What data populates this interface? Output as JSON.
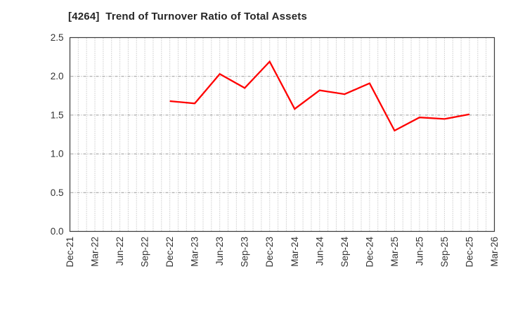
{
  "chart_data": {
    "type": "line",
    "title": "[4264]  Trend of Turnover Ratio of Total Assets",
    "xlabel": "",
    "ylabel": "",
    "ylim": [
      0.0,
      2.5
    ],
    "y_tick_step": 0.5,
    "y_tick_labels": [
      "0.0",
      "0.5",
      "1.0",
      "1.5",
      "2.0",
      "2.5"
    ],
    "x_tick_labels": [
      "Dec-21",
      "Mar-22",
      "Jun-22",
      "Sep-22",
      "Dec-22",
      "Mar-23",
      "Jun-23",
      "Sep-23",
      "Dec-23",
      "Mar-24",
      "Jun-24",
      "Sep-24",
      "Dec-24",
      "Mar-25",
      "Jun-25",
      "Sep-25",
      "Dec-25",
      "Mar-26"
    ],
    "x_tick_rotation_deg": 90,
    "grid": {
      "vertical": "monthly, dotted",
      "horizontal": "every 0.5, dash-dot"
    },
    "legend_position": "none",
    "series": [
      {
        "name": "Turnover Ratio of Total Assets",
        "color": "#ff0000",
        "points": [
          {
            "x": "Dec-22",
            "y": 1.68
          },
          {
            "x": "Mar-23",
            "y": 1.65
          },
          {
            "x": "Jun-23",
            "y": 2.03
          },
          {
            "x": "Sep-23",
            "y": 1.85
          },
          {
            "x": "Dec-23",
            "y": 2.19
          },
          {
            "x": "Mar-24",
            "y": 1.58
          },
          {
            "x": "Jun-24",
            "y": 1.82
          },
          {
            "x": "Sep-24",
            "y": 1.77
          },
          {
            "x": "Dec-24",
            "y": 1.91
          },
          {
            "x": "Mar-25",
            "y": 1.3
          },
          {
            "x": "Jun-25",
            "y": 1.47
          },
          {
            "x": "Sep-25",
            "y": 1.45
          },
          {
            "x": "Dec-25",
            "y": 1.51
          }
        ]
      }
    ]
  },
  "colors": {
    "series_line": "#ff0000",
    "title_text": "#262626",
    "axis_tick_text": "#333333",
    "plot_border": "#3a3a3a",
    "grid_vertical": "#b0b0b0",
    "grid_horizontal": "#999999",
    "background": "#ffffff"
  }
}
